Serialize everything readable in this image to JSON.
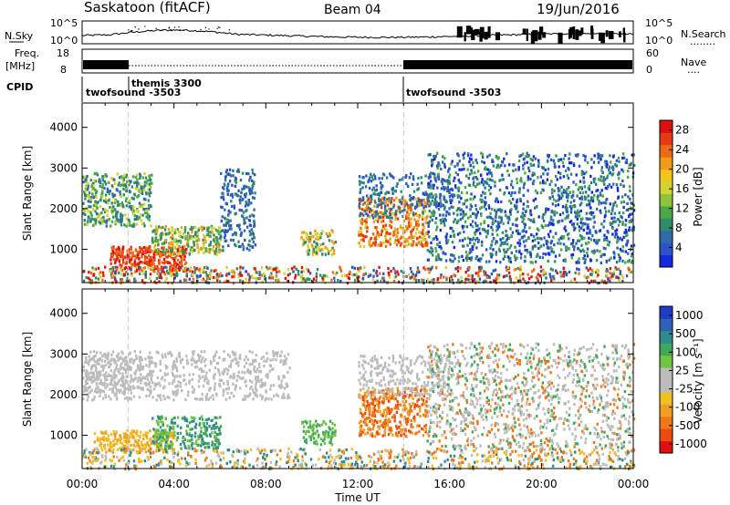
{
  "header": {
    "site": "Saskatoon (fitACF)",
    "beam": "Beam 04",
    "date": "19/Jun/2016"
  },
  "nsky_panel": {
    "left_label": "N.Sky",
    "left_ticks": [
      "10^5",
      "10^0"
    ],
    "right_ticks": [
      "10^5",
      "10^0"
    ],
    "right_label": "N.Search",
    "right_legend": "........"
  },
  "freq_panel": {
    "left_label": [
      "Freq.",
      "[MHz]"
    ],
    "left_ticks": [
      "18",
      "8"
    ],
    "right_ticks": [
      "60",
      "0"
    ],
    "right_label": "Nave",
    "right_legend": "...."
  },
  "cpid_panel": {
    "label": "CPID",
    "entries": [
      "themis 3300",
      "twofsound -3503",
      "twofsound -3503"
    ]
  },
  "time_axis": {
    "label": "Time UT",
    "ticks": [
      "00:00",
      "04:00",
      "08:00",
      "12:00",
      "16:00",
      "20:00",
      "00:00"
    ]
  },
  "chart_data": [
    {
      "type": "heatmap",
      "panel": "power",
      "ylabel": "Slant Range [km]",
      "yticks": [
        1000,
        2000,
        3000,
        4000
      ],
      "ylim": [
        180,
        4600
      ],
      "xlim_hours": [
        0,
        24
      ],
      "colorbar": {
        "label": "Power [dB]",
        "ticks": [
          "4",
          "8",
          "12",
          "16",
          "20",
          "24",
          "28"
        ],
        "range": [
          0,
          30
        ],
        "colors": [
          "#1528e0",
          "#2c52c8",
          "#2f6aa8",
          "#2f8c6a",
          "#48a846",
          "#8cc43a",
          "#d2d230",
          "#f0c41c",
          "#f09a1a",
          "#ec6a16",
          "#e63a12",
          "#e01010"
        ]
      }
    },
    {
      "type": "heatmap",
      "panel": "velocity",
      "ylabel": "Slant Range [km]",
      "yticks": [
        1000,
        2000,
        3000,
        4000
      ],
      "ylim": [
        180,
        4600
      ],
      "xlim_hours": [
        0,
        24
      ],
      "colorbar": {
        "label": "Velocity [m s⁻¹]",
        "ticks": [
          "1000",
          "500",
          "100",
          "25",
          "-25",
          "-100",
          "-500",
          "-1000"
        ],
        "colors": [
          "#1e3cc8",
          "#2f62b4",
          "#2f8a8c",
          "#3fa85a",
          "#70c440",
          "#bcbcbc",
          "#bcbcbc",
          "#f0c020",
          "#f0a020",
          "#f07818",
          "#ec4a12",
          "#e01010"
        ]
      }
    }
  ]
}
